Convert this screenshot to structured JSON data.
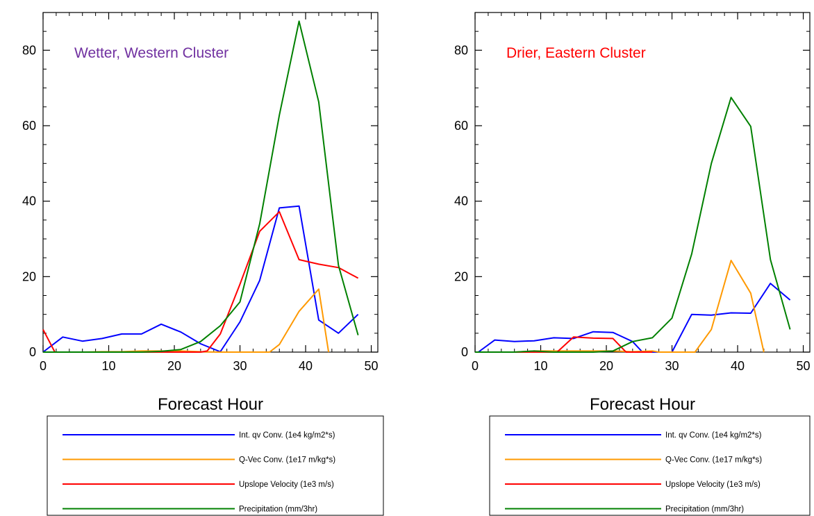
{
  "chart_data": [
    {
      "type": "line",
      "title": "Wetter, Western Cluster",
      "title_color": "#7030a0",
      "xlabel": "Forecast Hour",
      "ylabel": "",
      "xlim": [
        0,
        51
      ],
      "ylim": [
        0,
        90
      ],
      "xticks": [
        0,
        10,
        20,
        30,
        40,
        50
      ],
      "yticks": [
        0,
        20,
        40,
        60,
        80
      ],
      "grid": false,
      "legend": "below",
      "series": [
        {
          "name": "Int. qv Conv. (1e4 kg/m2*s)",
          "color": "#0000ff",
          "x": [
            0,
            3,
            6,
            9,
            12,
            15,
            18,
            21,
            24,
            27,
            30,
            33,
            36,
            39,
            42,
            45,
            48
          ],
          "y": [
            0,
            4,
            2.9,
            3.6,
            4.8,
            4.8,
            7.4,
            5.3,
            2.2,
            0.1,
            8,
            19,
            38.2,
            38.7,
            8.5,
            5,
            10
          ]
        },
        {
          "name": "Q-Vec Conv. (1e17 m/kg*s)",
          "color": "#ff9900",
          "x": [
            0,
            3,
            6,
            9,
            12,
            15,
            18,
            21,
            24,
            27,
            30,
            33,
            34.5,
            36,
            39,
            42,
            43.5
          ],
          "y": [
            0,
            0,
            0,
            0.1,
            0.1,
            0.3,
            0.3,
            0.3,
            0.1,
            0,
            0,
            0,
            0,
            2,
            10.8,
            16.7,
            0
          ]
        },
        {
          "name": "Upslope Velocity (1e3 m/s)",
          "color": "#ff0000",
          "x": [
            0,
            1.8,
            3,
            6,
            9,
            12,
            15,
            18,
            21,
            24,
            25,
            27,
            30,
            33,
            36,
            39,
            42,
            45,
            48
          ],
          "y": [
            6,
            0,
            0,
            0,
            0,
            0,
            0,
            0,
            0,
            0,
            0.3,
            4.8,
            18,
            32,
            37.2,
            24.5,
            23.3,
            22.4,
            19.6
          ]
        },
        {
          "name": "Precipitation (mm/3hr)",
          "color": "#008000",
          "x": [
            0,
            3,
            6,
            9,
            12,
            15,
            18,
            21,
            24,
            27,
            30,
            33,
            36,
            39,
            42,
            45,
            48
          ],
          "y": [
            0,
            0,
            0,
            0,
            0,
            0,
            0.2,
            0.7,
            2.8,
            7,
            13.3,
            34,
            62.8,
            87.7,
            66.3,
            23,
            4.5
          ]
        }
      ]
    },
    {
      "type": "line",
      "title": "Drier, Eastern Cluster",
      "title_color": "#ff0000",
      "xlabel": "Forecast Hour",
      "ylabel": "",
      "xlim": [
        0,
        51
      ],
      "ylim": [
        0,
        90
      ],
      "xticks": [
        0,
        10,
        20,
        30,
        40,
        50
      ],
      "yticks": [
        0,
        20,
        40,
        60,
        80
      ],
      "grid": false,
      "legend": "below",
      "series": [
        {
          "name": "Int. qv Conv. (1e4 kg/m2*s)",
          "color": "#0000ff",
          "x": [
            0.5,
            3,
            6,
            9,
            12,
            15,
            18,
            21,
            24,
            25.5,
            27,
            30,
            33,
            36,
            39,
            42,
            45,
            48
          ],
          "y": [
            0,
            3.2,
            2.8,
            3,
            3.8,
            3.6,
            5.4,
            5.2,
            2.8,
            0,
            0,
            0,
            10,
            9.8,
            10.4,
            10.3,
            18.2,
            13.8
          ]
        },
        {
          "name": "Q-Vec Conv. (1e17 m/kg*s)",
          "color": "#ff9900",
          "x": [
            0,
            3,
            6,
            9,
            12,
            15,
            18,
            21,
            24,
            27,
            28,
            30,
            33.5,
            36,
            39,
            42,
            44
          ],
          "y": [
            0,
            0,
            0,
            0.3,
            0.3,
            0.3,
            0.3,
            0.3,
            0.1,
            0.3,
            0,
            0,
            0,
            6,
            24.3,
            15.6,
            0
          ]
        },
        {
          "name": "Upslope Velocity (1e3 m/s)",
          "color": "#ff0000",
          "x": [
            0,
            3,
            6,
            9,
            12.5,
            15,
            18,
            21,
            23,
            24,
            27
          ],
          "y": [
            0,
            0,
            0,
            0,
            0,
            4,
            3.7,
            3.6,
            0,
            0,
            0
          ]
        },
        {
          "name": "Precipitation (mm/3hr)",
          "color": "#008000",
          "x": [
            0,
            3,
            6,
            9,
            12,
            15,
            18,
            21,
            24,
            27,
            30,
            33,
            36,
            39,
            42,
            45,
            48
          ],
          "y": [
            0,
            0,
            0,
            0.3,
            0,
            0,
            0,
            0.3,
            2.8,
            3.8,
            9,
            26,
            50,
            67.5,
            59.8,
            24.5,
            6
          ]
        }
      ]
    }
  ]
}
